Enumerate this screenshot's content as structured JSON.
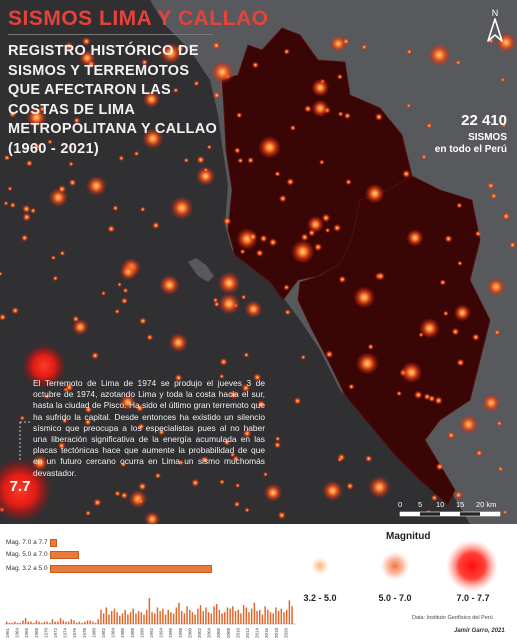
{
  "header": {
    "title": "SISMOS LIMA Y CALLAO",
    "subtitle": "REGISTRO HISTÓRICO DE SISMOS Y TERREMOTOS QUE AFECTARON LAS COSTAS DE LIMA METROPOLITANA Y CALLAO (1960 - 2021)"
  },
  "stats": {
    "count": "22 410",
    "label_line1": "SISMOS",
    "label_line2": "en todo el Perú"
  },
  "note": {
    "text": "El Terremoto de Lima de 1974 se produjo el jueves 3 de octubre de 1974, azotando Lima y toda la costa hacia el sur, hasta la ciudad de Pisco. Ha sido el último gran terremoto que ha sufrido la capital. Desde entonces ha existido un silencio sísmico que preocupa a los especialistas pues al no haber una liberación significativa de la energía acumulada en las placas tectónicas hace que aumente la probabilidad de que en un futuro cercano ocurra en Lima un sismo muchomás devastador.",
    "magnitude": "7.7"
  },
  "compass": {
    "letter": "N"
  },
  "scale_bar": {
    "ticks": [
      "0",
      "5",
      "10",
      "15",
      "20 km"
    ]
  },
  "magnitude_bars": [
    {
      "label": "Mag. 7.0 a 7.7",
      "fraction": 0.03
    },
    {
      "label": "Mag. 5.0 a 7.0",
      "fraction": 0.17
    },
    {
      "label": "Mag. 3.2 a 5.0",
      "fraction": 1.0
    }
  ],
  "histogram": {
    "years": [
      "1961",
      "1964",
      "1966",
      "1968",
      "1970",
      "1972",
      "1974",
      "1976",
      "1978",
      "1980",
      "1982",
      "1984",
      "1986",
      "1988",
      "1990",
      "1992",
      "1994",
      "1996",
      "1998",
      "2000",
      "2002",
      "2004",
      "2006",
      "2008",
      "2010",
      "2012",
      "2014",
      "2016",
      "2018",
      "2020"
    ],
    "values": [
      2,
      1,
      1,
      2,
      1,
      1,
      3,
      5,
      2,
      2,
      1,
      3,
      2,
      1,
      2,
      2,
      1,
      4,
      2,
      2,
      5,
      3,
      2,
      2,
      4,
      3,
      1,
      2,
      1,
      2,
      3,
      3,
      2,
      1,
      4,
      12,
      9,
      14,
      8,
      11,
      13,
      10,
      7,
      9,
      12,
      8,
      10,
      13,
      9,
      11,
      10,
      8,
      12,
      22,
      10,
      9,
      14,
      11,
      13,
      8,
      12,
      10,
      9,
      14,
      18,
      11,
      9,
      15,
      12,
      10,
      8,
      13,
      16,
      11,
      14,
      10,
      9,
      15,
      17,
      12,
      9,
      10,
      14,
      13,
      15,
      11,
      12,
      9,
      16,
      14,
      10,
      13,
      18,
      11,
      12,
      8,
      15,
      12,
      10,
      9,
      14,
      11,
      13,
      10,
      12,
      20,
      15
    ]
  },
  "legend": {
    "title": "Magnitud",
    "items": [
      "3.2 - 5.0",
      "5.0 - 7.0",
      "7.0 - 7.7"
    ]
  },
  "credits": {
    "source": "Data: Instituto Geofísico del Perú",
    "author": "Jamir Garro, 2021"
  },
  "colors": {
    "sea": "#303033",
    "land": "#58595c",
    "province": "#3a0505",
    "quake": "#ff6a1a",
    "title": "#e8413a",
    "bar": "#ea7a3a"
  }
}
